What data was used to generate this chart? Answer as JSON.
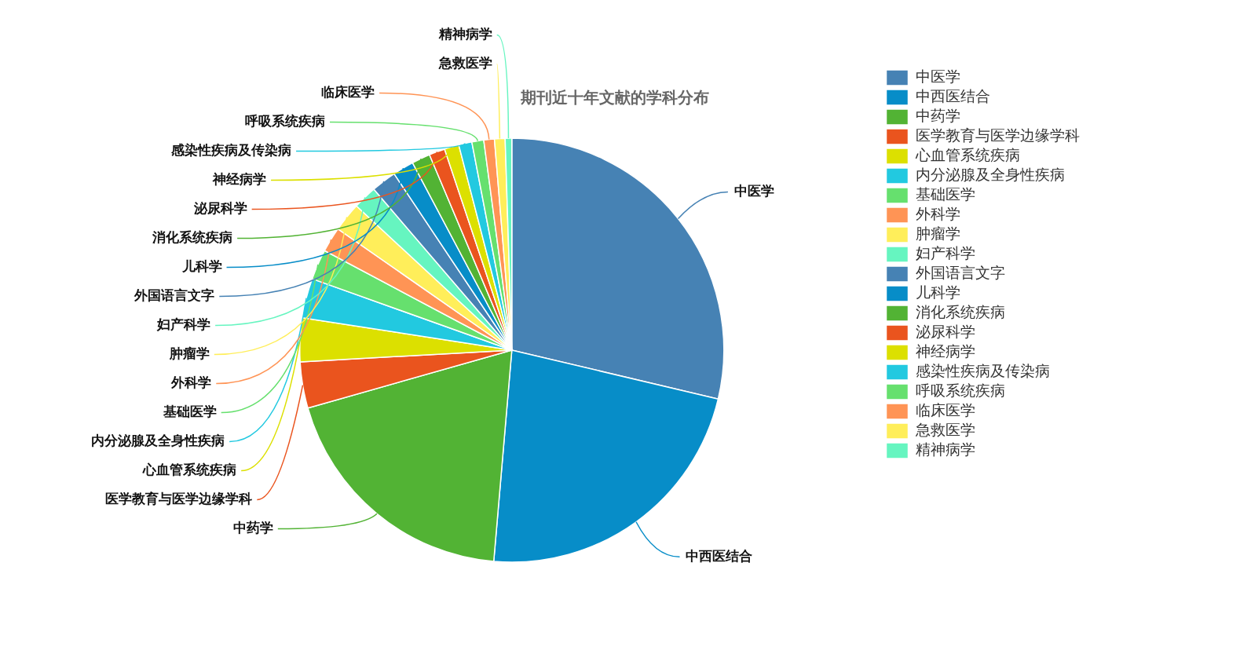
{
  "chart_data": {
    "type": "pie",
    "title": "期刊近十年文献的学科分布",
    "categories": [
      "中医学",
      "中西医结合",
      "中药学",
      "医学教育与医学边缘学科",
      "心血管系统疾病",
      "内分泌腺及全身性疾病",
      "基础医学",
      "外科学",
      "肿瘤学",
      "妇产科学",
      "外国语言文字",
      "儿科学",
      "消化系统疾病",
      "泌尿科学",
      "神经病学",
      "感染性疾病及传染病",
      "呼吸系统疾病",
      "临床医学",
      "急救医学",
      "精神病学"
    ],
    "values": [
      28.5,
      22.5,
      19.1,
      3.5,
      3.3,
      3.0,
      2.3,
      1.9,
      2.2,
      1.8,
      1.9,
      1.6,
      1.4,
      1.2,
      1.1,
      1.0,
      0.9,
      0.8,
      0.8,
      0.5
    ],
    "colors": [
      "#4682b4",
      "#078dc8",
      "#52b334",
      "#ea541e",
      "#dce000",
      "#22c9e0",
      "#66e06e",
      "#ff9455",
      "#ffee5a",
      "#66f5c0",
      "#4682b4",
      "#078dc8",
      "#52b334",
      "#ea541e",
      "#dce000",
      "#22c9e0",
      "#66e06e",
      "#ff9455",
      "#ffee5a",
      "#66f5c0"
    ],
    "legend": "right"
  }
}
